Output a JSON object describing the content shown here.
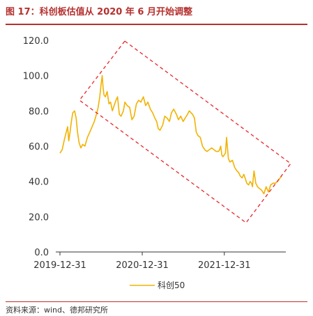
{
  "figure": {
    "title": "图 17：科创板估值从 2020 年 6 月开始调整",
    "source": "资料来源：wind、德邦研究所"
  },
  "colors": {
    "accent": "#b5312e",
    "line": "#f2b200",
    "annotation": "#e8262a"
  },
  "chart_data": {
    "type": "line",
    "title": "",
    "xlabel": "",
    "ylabel": "",
    "ylim": [
      0,
      120
    ],
    "yticks": [
      "0.0",
      "20.0",
      "40.0",
      "60.0",
      "80.0",
      "100.0",
      "120.0"
    ],
    "xlim": [
      "2019-12-31",
      "2022-09-15"
    ],
    "xticks": [
      "2019-12-31",
      "2020-12-31",
      "2021-12-31"
    ],
    "grid": false,
    "legend": "bottom-center",
    "series": [
      {
        "name": "科创50",
        "x": [
          "2019-12-31",
          "2020-01-10",
          "2020-01-20",
          "2020-02-03",
          "2020-02-08",
          "2020-02-14",
          "2020-02-20",
          "2020-02-26",
          "2020-03-05",
          "2020-03-12",
          "2020-03-18",
          "2020-03-25",
          "2020-04-02",
          "2020-04-10",
          "2020-04-20",
          "2020-05-01",
          "2020-05-12",
          "2020-05-22",
          "2020-06-01",
          "2020-06-10",
          "2020-06-18",
          "2020-06-25",
          "2020-07-01",
          "2020-07-06",
          "2020-07-10",
          "2020-07-14",
          "2020-07-20",
          "2020-07-28",
          "2020-08-05",
          "2020-08-12",
          "2020-08-20",
          "2020-08-28",
          "2020-09-05",
          "2020-09-12",
          "2020-09-20",
          "2020-09-28",
          "2020-10-08",
          "2020-10-15",
          "2020-10-25",
          "2020-11-05",
          "2020-11-15",
          "2020-11-25",
          "2020-12-05",
          "2020-12-15",
          "2020-12-25",
          "2021-01-05",
          "2021-01-15",
          "2021-01-25",
          "2021-02-05",
          "2021-02-15",
          "2021-02-25",
          "2021-03-05",
          "2021-03-12",
          "2021-03-20",
          "2021-04-01",
          "2021-04-10",
          "2021-04-20",
          "2021-05-01",
          "2021-05-10",
          "2021-05-20",
          "2021-06-01",
          "2021-06-10",
          "2021-06-20",
          "2021-07-01",
          "2021-07-10",
          "2021-07-20",
          "2021-07-28",
          "2021-08-05",
          "2021-08-12",
          "2021-08-20",
          "2021-08-28",
          "2021-09-05",
          "2021-09-15",
          "2021-09-25",
          "2021-10-05",
          "2021-10-15",
          "2021-10-25",
          "2021-11-05",
          "2021-11-15",
          "2021-11-25",
          "2021-12-05",
          "2021-12-10",
          "2021-12-15",
          "2021-12-20",
          "2021-12-25",
          "2022-01-05",
          "2022-01-10",
          "2022-01-18",
          "2022-01-25",
          "2022-02-05",
          "2022-02-15",
          "2022-02-25",
          "2022-03-05",
          "2022-03-12",
          "2022-03-20",
          "2022-03-28",
          "2022-04-05",
          "2022-04-10",
          "2022-04-18",
          "2022-04-25",
          "2022-05-01",
          "2022-05-05",
          "2022-05-12",
          "2022-05-20",
          "2022-05-28",
          "2022-06-05",
          "2022-06-15",
          "2022-06-25",
          "2022-07-05",
          "2022-07-15",
          "2022-07-25",
          "2022-08-05",
          "2022-08-15",
          "2022-08-25",
          "2022-09-05",
          "2022-09-12"
        ],
        "values": [
          56,
          58,
          64,
          71,
          63,
          68,
          74,
          79,
          80,
          76,
          68,
          62,
          59,
          61,
          60,
          65,
          68,
          71,
          74,
          78,
          82,
          88,
          95,
          100,
          93,
          89,
          88,
          91,
          84,
          85,
          80,
          83,
          86,
          88,
          78,
          77,
          80,
          85,
          83,
          82,
          75,
          77,
          84,
          86,
          85,
          88,
          83,
          85,
          81,
          79,
          76,
          74,
          70,
          69,
          72,
          77,
          76,
          74,
          79,
          81,
          78,
          75,
          77,
          74,
          76,
          78,
          80,
          79,
          78,
          76,
          68,
          66,
          65,
          60,
          58,
          57,
          58,
          59,
          58,
          57,
          57,
          58,
          60,
          55,
          54,
          56,
          65,
          53,
          51,
          52,
          48,
          46,
          45,
          43,
          42,
          44,
          41,
          39,
          38,
          40,
          39,
          37,
          46,
          39,
          37,
          36,
          35,
          33,
          37,
          34,
          38,
          39,
          39,
          40,
          42,
          43
        ]
      }
    ],
    "annotation": {
      "shape": "dashed rotated rectangle",
      "color": "#e8262a"
    }
  }
}
